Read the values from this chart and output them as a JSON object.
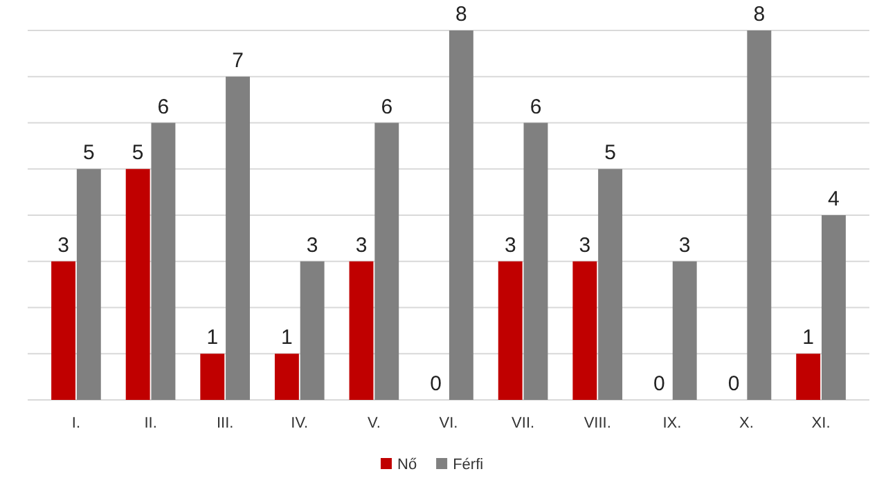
{
  "chart_data": {
    "type": "bar",
    "categories": [
      "I.",
      "II.",
      "III.",
      "IV.",
      "V.",
      "VI.",
      "VII.",
      "VIII.",
      "IX.",
      "X.",
      "XI."
    ],
    "series": [
      {
        "name": "Nő",
        "color": "#c00000",
        "values": [
          3,
          5,
          1,
          1,
          3,
          0,
          3,
          3,
          0,
          0,
          1
        ]
      },
      {
        "name": "Férfi",
        "color": "#808080",
        "values": [
          5,
          6,
          7,
          3,
          6,
          8,
          6,
          5,
          3,
          8,
          4
        ]
      }
    ],
    "ylim": [
      0,
      8
    ],
    "yticks": [
      {
        "value": 0,
        "label": null
      },
      {
        "value": 1,
        "label": null
      },
      {
        "value": 2,
        "label": null
      },
      {
        "value": 3,
        "label": null
      },
      {
        "value": 4,
        "label": null
      },
      {
        "value": 5,
        "label": null
      },
      {
        "value": 6,
        "label": null
      },
      {
        "value": 7,
        "label": null
      },
      {
        "value": 8,
        "label": null
      }
    ],
    "tick_labels": "x",
    "grid": "y",
    "data_labels": true,
    "legend": "bottom"
  }
}
